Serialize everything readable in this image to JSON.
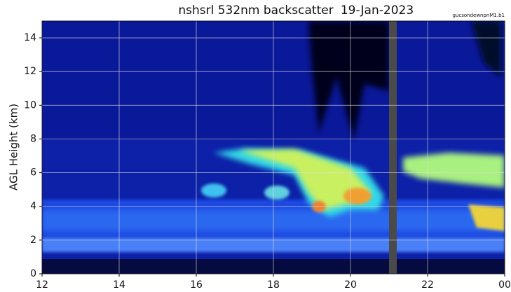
{
  "chart_data": {
    "type": "heatmap",
    "title": "nshsrl 532nm backscatter",
    "date": "19-Jan-2023",
    "source": "gucsondewnpnM1.b1",
    "ylabel": "AGL Height (km)",
    "xlim": [
      12,
      24
    ],
    "xticks": [
      12,
      14,
      16,
      18,
      20,
      22,
      {
        "value": 24,
        "label": "00"
      }
    ],
    "ylim": [
      0,
      15
    ],
    "yticks": [
      0,
      2,
      4,
      6,
      8,
      10,
      12,
      14
    ],
    "grid": true
  }
}
